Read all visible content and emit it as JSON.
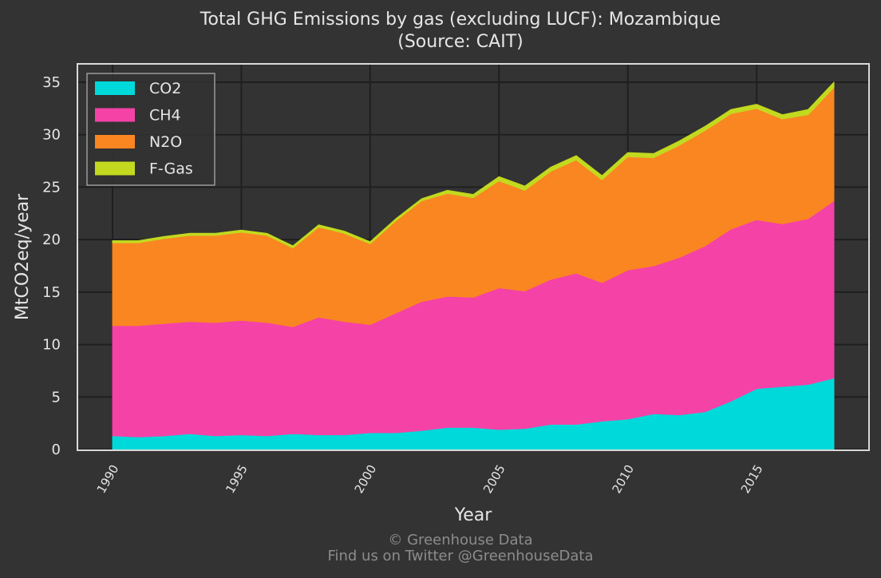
{
  "chart_data": {
    "type": "area",
    "stacked": true,
    "title": "Total GHG Emissions by gas (excluding LUCF): Mozambique",
    "subtitle": "(Source: CAIT)",
    "xlabel": "Year",
    "ylabel": "MtCO2eq/year",
    "xlim": [
      1990,
      2018
    ],
    "ylim": [
      0,
      35
    ],
    "xticks": [
      "1990",
      "1995",
      "2000",
      "2005",
      "2010",
      "2015"
    ],
    "yticks": [
      "0",
      "5",
      "10",
      "15",
      "20",
      "25",
      "30",
      "35"
    ],
    "grid": true,
    "legend_position": "top-left",
    "x": [
      1990,
      1991,
      1992,
      1993,
      1994,
      1995,
      1996,
      1997,
      1998,
      1999,
      2000,
      2001,
      2002,
      2003,
      2004,
      2005,
      2006,
      2007,
      2008,
      2009,
      2010,
      2011,
      2012,
      2013,
      2014,
      2015,
      2016,
      2017,
      2018
    ],
    "series": [
      {
        "name": "CO2",
        "color": "#00d9d9",
        "values": [
          1.3,
          1.2,
          1.3,
          1.5,
          1.3,
          1.4,
          1.3,
          1.5,
          1.4,
          1.4,
          1.6,
          1.6,
          1.8,
          2.1,
          2.1,
          1.9,
          2.0,
          2.4,
          2.4,
          2.7,
          2.9,
          3.4,
          3.3,
          3.6,
          4.6,
          5.8,
          6.0,
          6.2,
          6.8
        ]
      },
      {
        "name": "CH4",
        "color": "#f542a7",
        "values": [
          10.5,
          10.6,
          10.7,
          10.7,
          10.8,
          10.9,
          10.8,
          10.2,
          11.2,
          10.8,
          10.3,
          11.4,
          12.3,
          12.5,
          12.4,
          13.5,
          13.1,
          13.8,
          14.4,
          13.2,
          14.2,
          14.1,
          15.0,
          15.8,
          16.4,
          16.1,
          15.5,
          15.8,
          16.9
        ]
      },
      {
        "name": "N2O",
        "color": "#f98621",
        "values": [
          7.9,
          7.9,
          8.1,
          8.2,
          8.3,
          8.4,
          8.3,
          7.5,
          8.6,
          8.4,
          7.7,
          8.8,
          9.6,
          9.8,
          9.5,
          10.2,
          9.6,
          10.3,
          10.8,
          9.8,
          10.8,
          10.3,
          10.7,
          11.0,
          11.0,
          10.6,
          10.0,
          9.9,
          10.8
        ]
      },
      {
        "name": "F-Gas",
        "color": "#c3d91f",
        "values": [
          0.2,
          0.2,
          0.2,
          0.2,
          0.2,
          0.2,
          0.2,
          0.2,
          0.2,
          0.2,
          0.2,
          0.2,
          0.2,
          0.3,
          0.3,
          0.4,
          0.4,
          0.4,
          0.4,
          0.4,
          0.4,
          0.4,
          0.4,
          0.4,
          0.4,
          0.4,
          0.4,
          0.5,
          0.5
        ]
      }
    ]
  },
  "footer": {
    "line1": "© Greenhouse Data",
    "line2": "Find us on Twitter @GreenhouseData"
  }
}
